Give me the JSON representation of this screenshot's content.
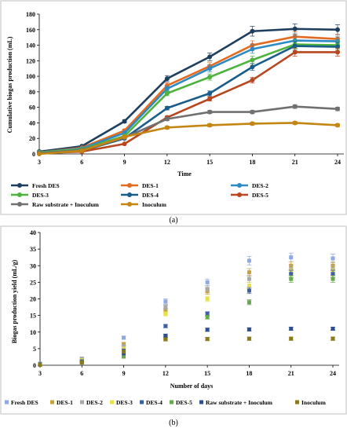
{
  "chart_data": [
    {
      "type": "line",
      "caption": "(a)",
      "xlabel": "Time",
      "ylabel": "Cumulative  biogas production (mL)",
      "x": [
        3,
        6,
        9,
        12,
        15,
        18,
        21,
        24
      ],
      "xlim": [
        3,
        24
      ],
      "ylim": [
        0,
        180
      ],
      "yticks": [
        0,
        20,
        40,
        60,
        80,
        100,
        120,
        140,
        160,
        180
      ],
      "grid": false,
      "legend_position": "bottom",
      "series": [
        {
          "name": "Fresh DES",
          "color": "#1f3f5f",
          "values": [
            3,
            10,
            42,
            97,
            125,
            158,
            161,
            160
          ]
        },
        {
          "name": "DES-1",
          "color": "#e26b22",
          "values": [
            2,
            8,
            30,
            88,
            113,
            140,
            151,
            148
          ]
        },
        {
          "name": "DES-2",
          "color": "#2e8ac4",
          "values": [
            2,
            7,
            27,
            84,
            110,
            135,
            146,
            145
          ]
        },
        {
          "name": "DES-3",
          "color": "#4db33d",
          "values": [
            2,
            6,
            23,
            78,
            99,
            121,
            141,
            140
          ]
        },
        {
          "name": "DES-4",
          "color": "#1a5d8a",
          "values": [
            1,
            4,
            20,
            59,
            78,
            112,
            139,
            138
          ]
        },
        {
          "name": "DES-5",
          "color": "#b8461e",
          "values": [
            1,
            3,
            13,
            47,
            71,
            95,
            131,
            131
          ]
        },
        {
          "name": "Raw substrate + Inoculum",
          "color": "#707070",
          "values": [
            1,
            5,
            21,
            45,
            54,
            54,
            61,
            58
          ]
        },
        {
          "name": "Inoculum",
          "color": "#c48512",
          "values": [
            0,
            4,
            22,
            34,
            37,
            39,
            40,
            37
          ]
        }
      ]
    },
    {
      "type": "scatter",
      "caption": "(b)",
      "xlabel": "Number of days",
      "ylabel": "Biogas production yield (mL/g)",
      "x": [
        3,
        6,
        9,
        12,
        15,
        18,
        21,
        24
      ],
      "xlim": [
        3,
        24
      ],
      "ylim": [
        0,
        40
      ],
      "yticks": [
        0,
        5,
        10,
        15,
        20,
        25,
        30,
        35,
        40
      ],
      "grid": false,
      "legend_position": "bottom",
      "series": [
        {
          "name": "Fresh DES",
          "color": "#8ea8e0",
          "values": [
            0.5,
            2,
            8.3,
            19.2,
            25,
            31.5,
            32.5,
            32.2
          ]
        },
        {
          "name": "DES-1",
          "color": "#c8a13a",
          "values": [
            0.4,
            1.8,
            6.4,
            16.5,
            22.3,
            28,
            30,
            30
          ]
        },
        {
          "name": "DES-2",
          "color": "#a9a9a9",
          "values": [
            0.4,
            1.7,
            5.7,
            17.5,
            23,
            26,
            29,
            29
          ]
        },
        {
          "name": "DES-3",
          "color": "#e6e14a",
          "values": [
            0.3,
            1.5,
            5,
            15.5,
            20,
            24,
            28,
            28
          ]
        },
        {
          "name": "DES-4",
          "color": "#3e5ea8",
          "values": [
            0.3,
            1.2,
            4.4,
            11.8,
            15.5,
            22.5,
            27.5,
            27.5
          ]
        },
        {
          "name": "DES-5",
          "color": "#6aa84f",
          "values": [
            0.2,
            1,
            2.6,
            8.3,
            14.5,
            19,
            26,
            26
          ]
        },
        {
          "name": "Raw substrate + Inoculum",
          "color": "#2f4f8f",
          "values": [
            0.2,
            0.9,
            3.6,
            8.9,
            10.7,
            10.8,
            11,
            11
          ]
        },
        {
          "name": "Inoculum",
          "color": "#8a7a1e",
          "values": [
            0.1,
            0.8,
            4.1,
            7.8,
            7.9,
            8,
            8,
            8
          ]
        }
      ]
    }
  ]
}
